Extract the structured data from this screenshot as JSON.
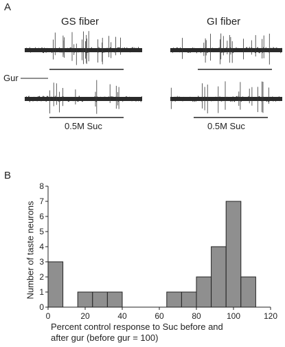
{
  "panel_a": {
    "label": "A",
    "gs_title": "GS fiber",
    "gi_title": "GI fiber",
    "gur_label": "Gur",
    "stim_label_left": "0.5M Suc",
    "stim_label_right": "0.5M Suc"
  },
  "panel_b": {
    "label": "B"
  },
  "chart_data": {
    "type": "bar",
    "xlabel": "Percent control response to Suc before and after gur (before gur = 100)",
    "xlabel_line1": "Percent control response to Suc before and",
    "xlabel_line2": "after gur (before gur = 100)",
    "ylabel": "Number of taste neurons",
    "xlim": [
      0,
      120
    ],
    "ylim": [
      0,
      8
    ],
    "xticks": [
      0,
      20,
      40,
      60,
      80,
      100,
      120
    ],
    "yticks": [
      0,
      1,
      2,
      3,
      4,
      5,
      6,
      7,
      8
    ],
    "bin_width": 8,
    "bar_color": "#8f8f8f",
    "bins": [
      {
        "start": 0,
        "value": 3
      },
      {
        "start": 8,
        "value": 0
      },
      {
        "start": 16,
        "value": 1
      },
      {
        "start": 24,
        "value": 1
      },
      {
        "start": 32,
        "value": 1
      },
      {
        "start": 40,
        "value": 0
      },
      {
        "start": 48,
        "value": 0
      },
      {
        "start": 56,
        "value": 0
      },
      {
        "start": 64,
        "value": 1
      },
      {
        "start": 72,
        "value": 1
      },
      {
        "start": 80,
        "value": 2
      },
      {
        "start": 88,
        "value": 4
      },
      {
        "start": 96,
        "value": 7
      },
      {
        "start": 104,
        "value": 2
      }
    ]
  }
}
